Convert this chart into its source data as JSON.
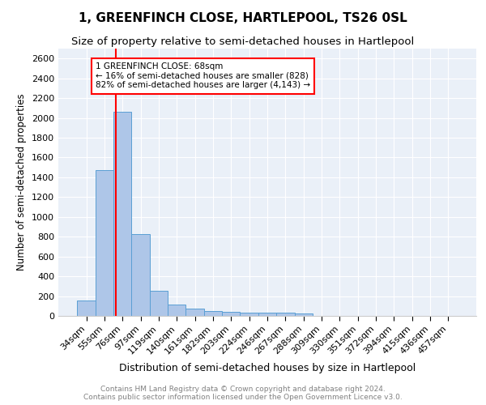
{
  "title": "1, GREENFINCH CLOSE, HARTLEPOOL, TS26 0SL",
  "subtitle": "Size of property relative to semi-detached houses in Hartlepool",
  "xlabel": "Distribution of semi-detached houses by size in Hartlepool",
  "ylabel": "Number of semi-detached properties",
  "footer": "Contains HM Land Registry data © Crown copyright and database right 2024.\nContains public sector information licensed under the Open Government Licence v3.0.",
  "categories": [
    "34sqm",
    "55sqm",
    "76sqm",
    "97sqm",
    "119sqm",
    "140sqm",
    "161sqm",
    "182sqm",
    "203sqm",
    "224sqm",
    "246sqm",
    "267sqm",
    "288sqm",
    "309sqm",
    "330sqm",
    "351sqm",
    "372sqm",
    "394sqm",
    "415sqm",
    "436sqm",
    "457sqm"
  ],
  "values": [
    155,
    1475,
    2060,
    830,
    250,
    112,
    75,
    48,
    38,
    35,
    35,
    30,
    22,
    0,
    0,
    0,
    0,
    0,
    0,
    0,
    0
  ],
  "bar_color": "#aec6e8",
  "bar_edge_color": "#5a9fd4",
  "annotation_text": "1 GREENFINCH CLOSE: 68sqm\n← 16% of semi-detached houses are smaller (828)\n82% of semi-detached houses are larger (4,143) →",
  "annotation_box_color": "white",
  "annotation_box_edge_color": "red",
  "red_line_x": 1.62,
  "ylim": [
    0,
    2700
  ],
  "yticks": [
    0,
    200,
    400,
    600,
    800,
    1000,
    1200,
    1400,
    1600,
    1800,
    2000,
    2200,
    2400,
    2600
  ],
  "background_color": "#eaf0f8",
  "title_fontsize": 11,
  "subtitle_fontsize": 9.5,
  "xlabel_fontsize": 9,
  "ylabel_fontsize": 8.5,
  "tick_fontsize": 8,
  "annotation_fontsize": 7.5,
  "footer_fontsize": 6.5
}
